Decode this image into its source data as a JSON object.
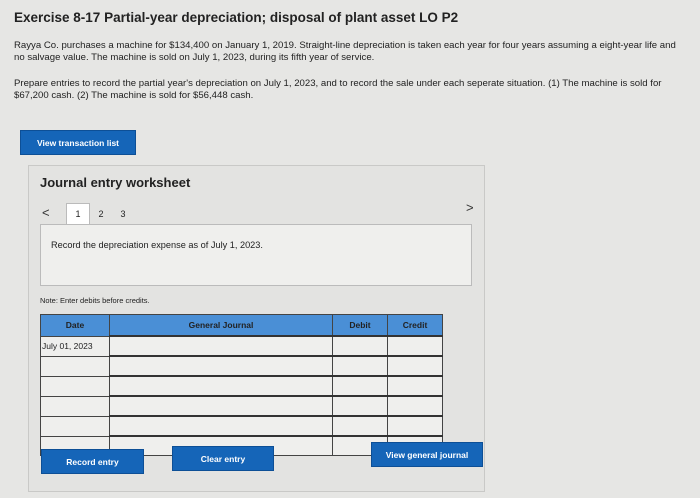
{
  "title": "Exercise 8-17 Partial-year depreciation; disposal of plant asset LO P2",
  "paragraph1": "Rayya Co. purchases a machine for $134,400 on January 1, 2019. Straight-line depreciation is taken each year for four years assuming a eight-year life and no salvage value. The machine is sold on July 1, 2023, during its fifth year of service.",
  "paragraph2": "Prepare entries to record the partial year's depreciation on July 1, 2023, and to record the sale under each seperate situation. (1) The machine is sold for $67,200 cash. (2) The machine is sold for $56,448 cash.",
  "view_transaction_list": "View transaction list",
  "worksheet": {
    "title": "Journal entry worksheet",
    "tabs": [
      "1",
      "2",
      "3"
    ],
    "active_tab": "1",
    "prev_icon": "chevron-left-icon",
    "next_icon": "chevron-right-icon",
    "instruction": "Record the depreciation expense as of July 1, 2023.",
    "note": "Note: Enter debits before credits.",
    "columns": [
      "Date",
      "General Journal",
      "Debit",
      "Credit"
    ],
    "rows": [
      [
        "July 01, 2023",
        "",
        "",
        ""
      ],
      [
        "",
        "",
        "",
        ""
      ],
      [
        "",
        "",
        "",
        ""
      ],
      [
        "",
        "",
        "",
        ""
      ],
      [
        "",
        "",
        "",
        ""
      ],
      [
        "",
        "",
        "",
        ""
      ]
    ],
    "record_entry": "Record entry",
    "clear_entry": "Clear entry",
    "view_general_journal": "View general journal"
  },
  "colors": {
    "button": "#1565b8",
    "header": "#4a8fd6"
  }
}
